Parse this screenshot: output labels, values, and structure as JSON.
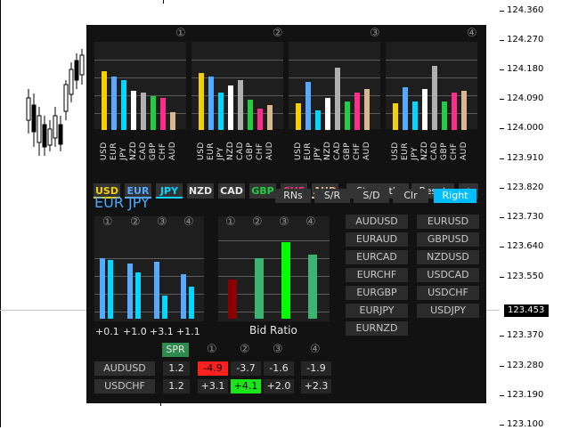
{
  "price_axis": {
    "labels": [
      "124.360",
      "124.270",
      "124.180",
      "124.090",
      "124.000",
      "123.910",
      "123.820",
      "123.730",
      "123.640",
      "123.550",
      "123.453",
      "123.370",
      "123.280",
      "123.190",
      "123.100"
    ],
    "current_price": "123.453"
  },
  "top_panels": [
    {
      "number": "①",
      "currencies": [
        "USD",
        "EUR",
        "JPY",
        "NZD",
        "CAD",
        "GBP",
        "CHF",
        "AUD"
      ]
    },
    {
      "number": "②",
      "currencies": [
        "USD",
        "EUR",
        "JPY",
        "NZD",
        "CAD",
        "GBP",
        "CHF",
        "AUD"
      ]
    },
    {
      "number": "③",
      "currencies": [
        "USD",
        "EUR",
        "JPY",
        "NZD",
        "CAD",
        "GBP",
        "CHF",
        "AUD"
      ]
    },
    {
      "number": "④",
      "currencies": [
        "USD",
        "EUR",
        "JPY",
        "NZD",
        "CAD",
        "GBP",
        "CHF",
        "AUD"
      ]
    }
  ],
  "currency_buttons": [
    "USD",
    "EUR",
    "JPY",
    "NZD",
    "CAD",
    "GBP",
    "CHF",
    "AUD"
  ],
  "control_buttons": {
    "strength": "Strength",
    "reset": "Reset",
    "plus": "+"
  },
  "pair_title": "EUR JPY",
  "mode_buttons": {
    "rns": "RNs",
    "sr": "S/R",
    "sd": "S/D",
    "clr": "Clr",
    "right": "Right"
  },
  "small_chart": {
    "numbers": [
      "①",
      "②",
      "③",
      "④"
    ],
    "labels": [
      "+0.1",
      "+1.0",
      "+3.1",
      "+1.1"
    ]
  },
  "bid_chart": {
    "numbers": [
      "①",
      "②",
      "③",
      "④"
    ],
    "title": "Bid Ratio"
  },
  "pair_list_left": [
    "AUDUSD",
    "EURAUD",
    "EURCAD",
    "EURCHF",
    "EURGBP",
    "EURJPY",
    "EURNZD"
  ],
  "pair_list_right": [
    "EURUSD",
    "GBPUSD",
    "NZDUSD",
    "USDCAD",
    "USDCHF",
    "USDJPY"
  ],
  "table": {
    "spr_label": "SPR",
    "numbers": [
      "①",
      "②",
      "③",
      "④"
    ],
    "rows": [
      {
        "pair": "AUDUSD",
        "spr": "1.2",
        "v": [
          "-4.9",
          "-3.7",
          "-1.6",
          "-1.9"
        ]
      },
      {
        "pair": "USDCHF",
        "spr": "1.2",
        "v": [
          "+3.1",
          "+4.1",
          "+2.0",
          "+2.3"
        ]
      }
    ]
  },
  "colors": {
    "usd": "#f5d000",
    "eur": "#55aaff",
    "jpy": "#00d8ff",
    "nzd": "#ffffff",
    "cad": "#b0b0b0",
    "gbp": "#22cc44",
    "chf": "#ff2d8a",
    "aud": "#d8b890",
    "right_btn": "#00bfff",
    "red_cell": "#ff2020",
    "green_cell": "#19e619"
  }
}
